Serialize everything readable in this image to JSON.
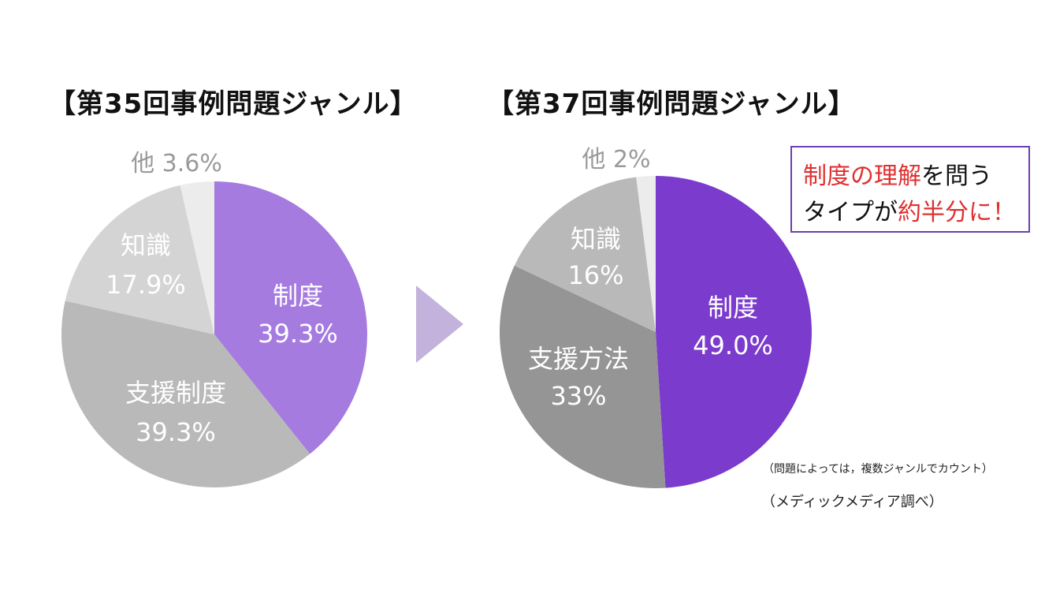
{
  "colors": {
    "purple_light": "#a57be0",
    "purple_dark": "#7b3bcc",
    "gray_light": "#d4d4d4",
    "gray_mid": "#b9b9b9",
    "gray_dark": "#959595",
    "gray_pale": "#ececec",
    "arrow": "#c3b2db"
  },
  "chart_data": [
    {
      "type": "pie",
      "title": "【第35回事例問題ジャンル】",
      "slices": [
        {
          "name": "制度",
          "value": 39.3,
          "label": "39.3%"
        },
        {
          "name": "支援制度",
          "value": 39.3,
          "label": "39.3%"
        },
        {
          "name": "知識",
          "value": 17.9,
          "label": "17.9%"
        },
        {
          "name": "他",
          "value": 3.6,
          "label": "3.6%"
        }
      ]
    },
    {
      "type": "pie",
      "title": "【第37回事例問題ジャンル】",
      "slices": [
        {
          "name": "制度",
          "value": 49.0,
          "label": "49.0%"
        },
        {
          "name": "支援方法",
          "value": 33,
          "label": "33%"
        },
        {
          "name": "知識",
          "value": 16,
          "label": "16%"
        },
        {
          "name": "他",
          "value": 2,
          "label": "2%"
        }
      ]
    }
  ],
  "callout": {
    "line1_red": "制度の理解",
    "line1_rest": "を問う",
    "line2_black": "タイプが",
    "line2_red": "約半分に！"
  },
  "note": "（問題によっては，複数ジャンルでカウント）",
  "source": "（メディックメディア調べ）"
}
